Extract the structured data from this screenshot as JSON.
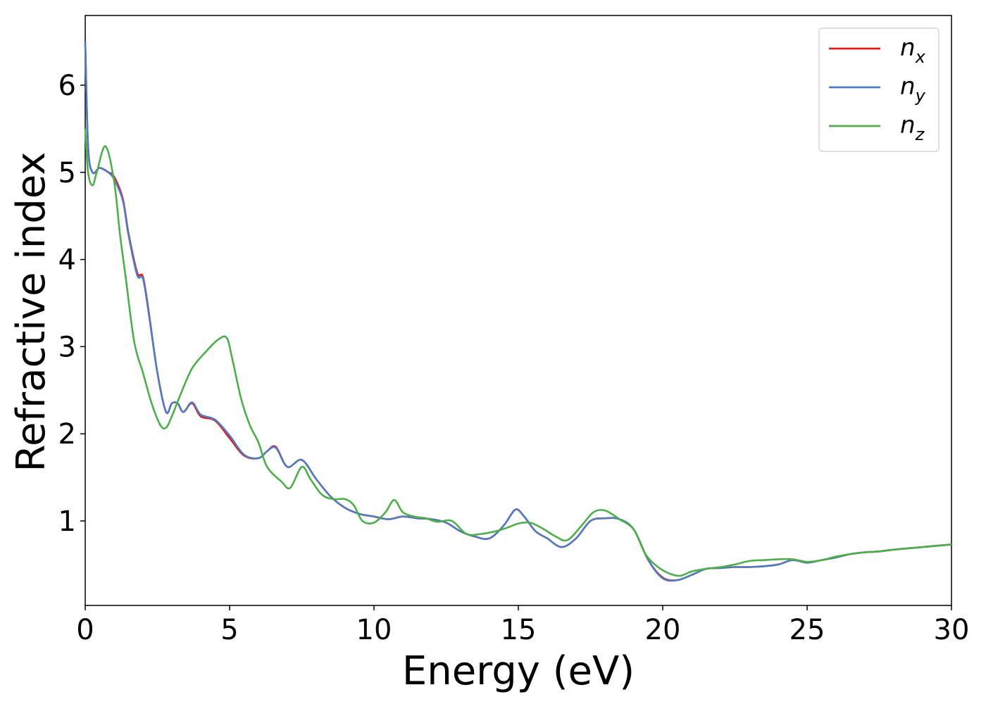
{
  "chart_data": {
    "type": "line",
    "xlabel": "Energy (eV)",
    "ylabel": "Refractive index",
    "xlim": [
      0,
      30
    ],
    "ylim": [
      0.03,
      6.8
    ],
    "xticks": [
      0,
      5,
      10,
      15,
      20,
      25,
      30
    ],
    "yticks": [
      1,
      2,
      3,
      4,
      5,
      6
    ],
    "grid": false,
    "legend_position": "top-right",
    "series": [
      {
        "name": "n",
        "subscript": "x",
        "color": "#e41a1c",
        "x": [
          0,
          0.1,
          0.25,
          0.5,
          0.8,
          1.0,
          1.3,
          1.5,
          1.8,
          2.0,
          2.2,
          2.5,
          2.8,
          3.0,
          3.2,
          3.4,
          3.7,
          4.0,
          4.5,
          5.0,
          5.5,
          6.0,
          6.3,
          6.6,
          7.0,
          7.5,
          8.0,
          8.5,
          9.0,
          9.5,
          10.0,
          10.5,
          11.0,
          11.5,
          12.0,
          12.5,
          13.0,
          13.5,
          14.0,
          14.5,
          14.9,
          15.2,
          15.6,
          16.0,
          16.5,
          17.0,
          17.5,
          18.0,
          18.5,
          19.0,
          19.5,
          20.0,
          20.5,
          21.0,
          21.5,
          22.0,
          22.5,
          23.0,
          23.5,
          24.0,
          24.5,
          25.0,
          25.5,
          26.0,
          26.5,
          27.0,
          27.5,
          28.0,
          29.0,
          30.0
        ],
        "values": [
          6.5,
          5.3,
          5.0,
          5.05,
          5.0,
          4.95,
          4.7,
          4.3,
          3.85,
          3.8,
          3.4,
          2.7,
          2.25,
          2.35,
          2.35,
          2.25,
          2.35,
          2.2,
          2.15,
          1.95,
          1.75,
          1.72,
          1.8,
          1.85,
          1.62,
          1.7,
          1.48,
          1.28,
          1.15,
          1.08,
          1.05,
          1.02,
          1.05,
          1.03,
          1.02,
          0.98,
          0.88,
          0.82,
          0.8,
          0.95,
          1.13,
          1.05,
          0.88,
          0.8,
          0.7,
          0.8,
          1.0,
          1.03,
          1.02,
          0.9,
          0.55,
          0.35,
          0.32,
          0.38,
          0.45,
          0.46,
          0.47,
          0.47,
          0.48,
          0.5,
          0.55,
          0.52,
          0.55,
          0.58,
          0.62,
          0.64,
          0.65,
          0.67,
          0.7,
          0.73
        ]
      },
      {
        "name": "n",
        "subscript": "y",
        "color": "#4f7cc0",
        "x": [
          0,
          0.1,
          0.25,
          0.5,
          0.8,
          1.0,
          1.3,
          1.5,
          1.8,
          2.0,
          2.2,
          2.5,
          2.8,
          3.0,
          3.2,
          3.4,
          3.7,
          4.0,
          4.5,
          5.0,
          5.5,
          6.0,
          6.3,
          6.6,
          7.0,
          7.5,
          8.0,
          8.5,
          9.0,
          9.5,
          10.0,
          10.5,
          11.0,
          11.5,
          12.0,
          12.5,
          13.0,
          13.5,
          14.0,
          14.5,
          14.9,
          15.2,
          15.6,
          16.0,
          16.5,
          17.0,
          17.5,
          18.0,
          18.5,
          19.0,
          19.5,
          20.0,
          20.5,
          21.0,
          21.5,
          22.0,
          22.5,
          23.0,
          23.5,
          24.0,
          24.5,
          25.0,
          25.5,
          26.0,
          26.5,
          27.0,
          27.5,
          28.0,
          29.0,
          30.0
        ],
        "values": [
          6.5,
          5.3,
          5.0,
          5.05,
          5.0,
          4.92,
          4.68,
          4.28,
          3.82,
          3.78,
          3.38,
          2.7,
          2.25,
          2.35,
          2.35,
          2.25,
          2.36,
          2.22,
          2.16,
          1.98,
          1.76,
          1.72,
          1.8,
          1.84,
          1.62,
          1.7,
          1.48,
          1.28,
          1.15,
          1.08,
          1.05,
          1.02,
          1.05,
          1.03,
          1.02,
          0.98,
          0.88,
          0.82,
          0.8,
          0.95,
          1.13,
          1.05,
          0.88,
          0.8,
          0.7,
          0.8,
          1.0,
          1.03,
          1.02,
          0.9,
          0.55,
          0.34,
          0.32,
          0.38,
          0.45,
          0.46,
          0.47,
          0.47,
          0.48,
          0.5,
          0.55,
          0.52,
          0.55,
          0.58,
          0.62,
          0.64,
          0.65,
          0.67,
          0.7,
          0.73
        ]
      },
      {
        "name": "n",
        "subscript": "z",
        "color": "#4daf4a",
        "x": [
          0,
          0.1,
          0.25,
          0.4,
          0.7,
          1.0,
          1.2,
          1.4,
          1.7,
          2.0,
          2.3,
          2.6,
          2.8,
          3.0,
          3.3,
          3.7,
          4.2,
          4.6,
          4.9,
          5.1,
          5.4,
          5.7,
          6.0,
          6.3,
          6.8,
          7.1,
          7.5,
          7.8,
          8.2,
          8.6,
          9.0,
          9.3,
          9.6,
          10.0,
          10.4,
          10.7,
          11.0,
          11.4,
          11.8,
          12.2,
          12.7,
          13.2,
          13.7,
          14.2,
          14.6,
          15.0,
          15.4,
          15.8,
          16.3,
          16.7,
          17.2,
          17.6,
          18.0,
          18.5,
          19.0,
          19.4,
          19.8,
          20.2,
          20.6,
          21.0,
          21.5,
          22.0,
          22.5,
          23.0,
          23.5,
          24.0,
          24.5,
          25.0,
          25.5,
          26.0,
          26.5,
          27.0,
          27.5,
          28.0,
          29.0,
          30.0
        ],
        "values": [
          5.5,
          5.0,
          4.85,
          5.0,
          5.3,
          4.9,
          4.3,
          3.8,
          3.05,
          2.7,
          2.35,
          2.1,
          2.07,
          2.2,
          2.45,
          2.75,
          2.95,
          3.08,
          3.1,
          2.85,
          2.4,
          2.1,
          1.9,
          1.62,
          1.45,
          1.38,
          1.62,
          1.48,
          1.3,
          1.25,
          1.25,
          1.18,
          1.0,
          0.98,
          1.1,
          1.24,
          1.1,
          1.05,
          1.03,
          0.99,
          1.0,
          0.85,
          0.85,
          0.88,
          0.92,
          0.97,
          0.98,
          0.92,
          0.82,
          0.78,
          0.95,
          1.1,
          1.12,
          1.02,
          0.9,
          0.62,
          0.48,
          0.4,
          0.37,
          0.42,
          0.45,
          0.47,
          0.5,
          0.54,
          0.55,
          0.56,
          0.56,
          0.53,
          0.55,
          0.59,
          0.62,
          0.64,
          0.65,
          0.67,
          0.7,
          0.73
        ]
      }
    ]
  }
}
